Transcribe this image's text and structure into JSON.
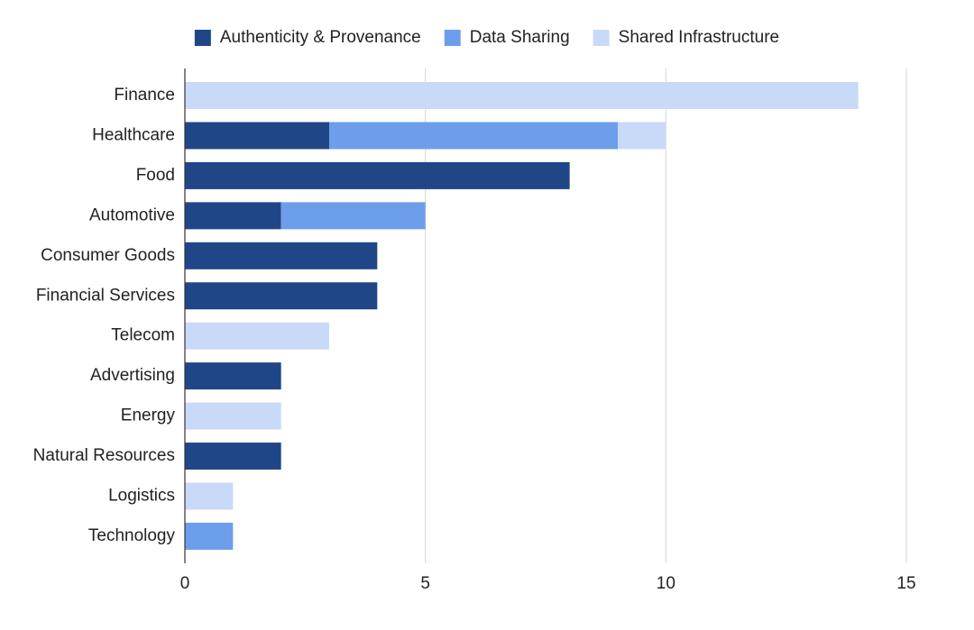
{
  "chart_data": {
    "type": "bar",
    "orientation": "horizontal",
    "stacked": true,
    "categories": [
      "Finance",
      "Healthcare",
      "Food",
      "Automotive",
      "Consumer Goods",
      "Financial Services",
      "Telecom",
      "Advertising",
      "Energy",
      "Natural Resources",
      "Logistics",
      "Technology"
    ],
    "series": [
      {
        "name": "Authenticity & Provenance",
        "color": "#1f4788",
        "values": [
          0,
          3,
          8,
          2,
          4,
          4,
          0,
          2,
          0,
          2,
          0,
          0
        ]
      },
      {
        "name": "Data Sharing",
        "color": "#6d9eeb",
        "values": [
          0,
          6,
          0,
          3,
          0,
          0,
          0,
          0,
          0,
          0,
          0,
          1
        ]
      },
      {
        "name": "Shared Infrastructure",
        "color": "#c9daf8",
        "values": [
          14,
          1,
          0,
          0,
          0,
          0,
          3,
          0,
          2,
          0,
          1,
          0
        ]
      }
    ],
    "xlim": [
      0,
      15
    ],
    "xticks": [
      0,
      5,
      10,
      15
    ],
    "tick_labels": [
      "0",
      "5",
      "10",
      "15"
    ],
    "grid": true,
    "legend_position": "top"
  }
}
